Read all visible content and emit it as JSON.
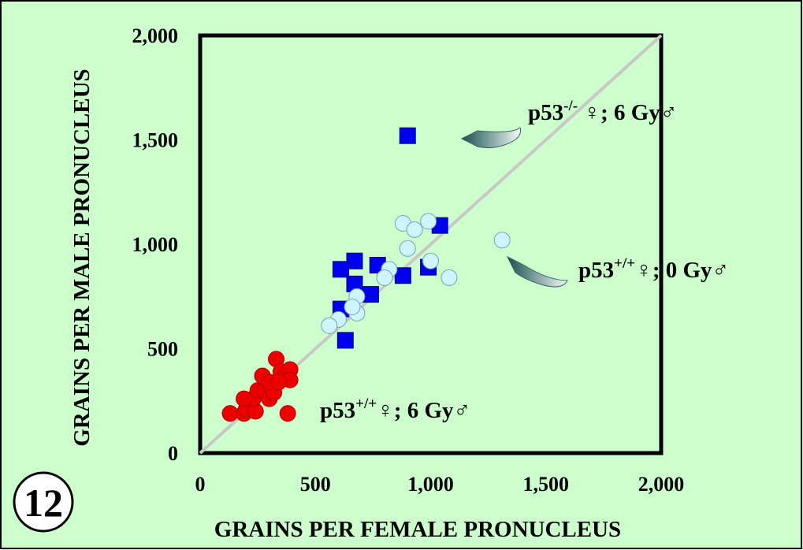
{
  "chart_data": {
    "type": "scatter",
    "xlabel": "GRAINS PER FEMALE PRONUCLEUS",
    "ylabel": "GRAINS PER MALE PRONUCLEUS",
    "xlim": [
      0,
      2000
    ],
    "ylim": [
      0,
      2000
    ],
    "x_ticks": [
      "0",
      "500",
      "1,000",
      "1,500",
      "2,000"
    ],
    "y_ticks": [
      "0",
      "500",
      "1,000",
      "1,500",
      "2,000"
    ],
    "x_tick_values": [
      0,
      500,
      1000,
      1500,
      2000
    ],
    "y_tick_values": [
      0,
      500,
      1000,
      1500,
      2000
    ],
    "grid": false,
    "reference_line": "y = x",
    "series": [
      {
        "marker": "square",
        "color": "#0000ee",
        "points": [
          [
            900,
            1520
          ],
          [
            1040,
            1090
          ],
          [
            990,
            890
          ],
          [
            880,
            850
          ],
          [
            770,
            900
          ],
          [
            670,
            920
          ],
          [
            610,
            880
          ],
          [
            670,
            810
          ],
          [
            740,
            760
          ],
          [
            610,
            690
          ],
          [
            630,
            540
          ]
        ]
      },
      {
        "marker": "circle",
        "color": "#ccf5ff",
        "points": [
          [
            1310,
            1020
          ],
          [
            880,
            1100
          ],
          [
            990,
            1110
          ],
          [
            930,
            1070
          ],
          [
            900,
            980
          ],
          [
            1000,
            920
          ],
          [
            1080,
            840
          ],
          [
            820,
            880
          ],
          [
            800,
            840
          ],
          [
            680,
            750
          ],
          [
            680,
            670
          ],
          [
            660,
            700
          ],
          [
            600,
            640
          ],
          [
            560,
            610
          ]
        ]
      },
      {
        "marker": "circle",
        "color": "#ee0000",
        "points": [
          [
            130,
            190
          ],
          [
            190,
            190
          ],
          [
            200,
            210
          ],
          [
            240,
            200
          ],
          [
            230,
            260
          ],
          [
            190,
            260
          ],
          [
            250,
            300
          ],
          [
            280,
            300
          ],
          [
            300,
            260
          ],
          [
            320,
            290
          ],
          [
            270,
            370
          ],
          [
            300,
            340
          ],
          [
            330,
            450
          ],
          [
            350,
            390
          ],
          [
            370,
            370
          ],
          [
            390,
            400
          ],
          [
            390,
            350
          ],
          [
            380,
            190
          ],
          [
            340,
            340
          ]
        ]
      }
    ],
    "annotations": [
      {
        "label": "p53",
        "sup": "-/-",
        "rest": " ♀; 6 Gy♂"
      },
      {
        "label": "p53",
        "sup": "+/+",
        "rest": "♀; 0 Gy♂"
      },
      {
        "label": "p53",
        "sup": "+/+",
        "rest": "♀; 6 Gy♂"
      }
    ]
  },
  "figure_number": "12"
}
